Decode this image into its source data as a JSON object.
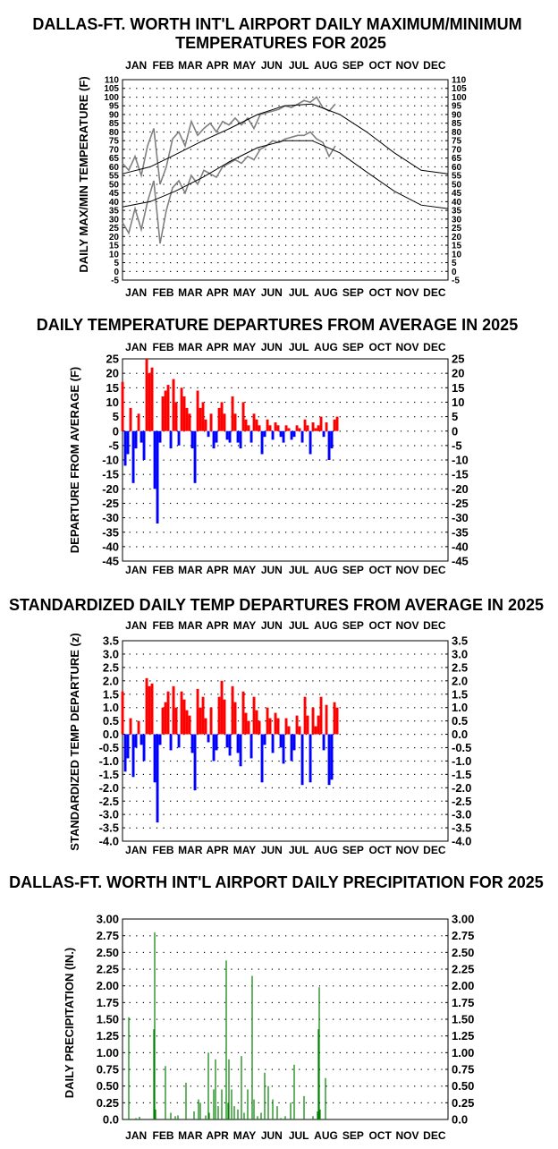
{
  "months": [
    "JAN",
    "FEB",
    "MAR",
    "APR",
    "MAY",
    "JUN",
    "JUL",
    "AUG",
    "SEP",
    "OCT",
    "NOV",
    "DEC"
  ],
  "colors": {
    "max_min": "#808080",
    "normal": "#000000",
    "above": "#ff0000",
    "below": "#0000ff",
    "precip": "#008000",
    "grid": "#000000"
  },
  "chart_data": [
    {
      "type": "line",
      "title": "DALLAS-FT. WORTH INT'L AIRPORT DAILY MAXIMUM/MINIMUM\nTEMPERATURES FOR 2025",
      "ylabel": "DAILY MAX/MIN TEMPERATURE (F)",
      "ylim": [
        -5,
        110
      ],
      "yticks": [
        "110",
        "105",
        "100",
        "95",
        "90",
        "85",
        "80",
        "75",
        "70",
        "65",
        "60",
        "55",
        "50",
        "45",
        "40",
        "35",
        "30",
        "25",
        "20",
        "15",
        "10",
        "5",
        "0",
        "-5"
      ],
      "x_units": "day of year",
      "xlim": [
        1,
        365
      ],
      "grid": true,
      "series": [
        {
          "name": "",
          "role": "daily max",
          "x": [
            1,
            8,
            15,
            22,
            29,
            36,
            43,
            50,
            57,
            64,
            71,
            78,
            85,
            92,
            99,
            106,
            113,
            120,
            127,
            134,
            141,
            148,
            155,
            162,
            169,
            176,
            183,
            190,
            197,
            204,
            211,
            218,
            225,
            232,
            239
          ],
          "values": [
            62,
            58,
            66,
            55,
            72,
            82,
            50,
            60,
            76,
            80,
            72,
            86,
            78,
            82,
            85,
            80,
            86,
            84,
            88,
            84,
            88,
            82,
            90,
            91,
            92,
            93,
            95,
            94,
            96,
            98,
            97,
            100,
            94,
            92,
            96
          ]
        },
        {
          "name": "",
          "role": "daily min",
          "x": [
            1,
            8,
            15,
            22,
            29,
            36,
            43,
            50,
            57,
            64,
            71,
            78,
            85,
            92,
            99,
            106,
            113,
            120,
            127,
            134,
            141,
            148,
            155,
            162,
            169,
            176,
            183,
            190,
            197,
            204,
            211,
            218,
            225,
            232,
            239
          ],
          "values": [
            28,
            22,
            36,
            24,
            40,
            52,
            16,
            35,
            48,
            52,
            45,
            55,
            50,
            58,
            56,
            54,
            60,
            62,
            64,
            62,
            66,
            64,
            70,
            72,
            75,
            74,
            76,
            77,
            78,
            78,
            80,
            76,
            74,
            66,
            72
          ]
        },
        {
          "name": "",
          "role": "normal max",
          "x": [
            1,
            32,
            60,
            91,
            121,
            152,
            182,
            213,
            244,
            274,
            305,
            335,
            365
          ],
          "values": [
            56,
            60,
            67,
            75,
            82,
            90,
            95,
            96,
            90,
            80,
            68,
            58,
            56
          ]
        },
        {
          "name": "",
          "role": "normal min",
          "x": [
            1,
            32,
            60,
            91,
            121,
            152,
            182,
            213,
            244,
            274,
            305,
            335,
            365
          ],
          "values": [
            37,
            40,
            46,
            54,
            63,
            71,
            75,
            75,
            68,
            57,
            46,
            38,
            36
          ]
        }
      ]
    },
    {
      "type": "bar",
      "title": "DAILY TEMPERATURE DEPARTURES FROM AVERAGE IN 2025",
      "ylabel": "DEPARTURE FROM AVERAGE (F)",
      "ylim": [
        -45,
        25
      ],
      "yticks": [
        "25",
        "20",
        "15",
        "10",
        "5",
        "0",
        "-5",
        "-10",
        "-15",
        "-20",
        "-25",
        "-30",
        "-35",
        "-40",
        "-45"
      ],
      "x_units": "day of year",
      "x": [
        1,
        4,
        7,
        10,
        13,
        16,
        19,
        22,
        25,
        28,
        31,
        34,
        37,
        40,
        43,
        46,
        49,
        52,
        55,
        58,
        61,
        64,
        67,
        70,
        73,
        76,
        79,
        82,
        85,
        88,
        91,
        94,
        97,
        100,
        103,
        106,
        109,
        112,
        115,
        118,
        121,
        124,
        127,
        130,
        133,
        136,
        139,
        142,
        145,
        148,
        151,
        154,
        157,
        160,
        163,
        166,
        169,
        172,
        175,
        178,
        181,
        184,
        187,
        190,
        193,
        196,
        199,
        202,
        205,
        208,
        211,
        214,
        217,
        220,
        223,
        226,
        229,
        232,
        235,
        238,
        241
      ],
      "values": [
        17,
        -12,
        -8,
        8,
        -18,
        -6,
        6,
        -4,
        -10,
        25,
        20,
        22,
        -20,
        -32,
        -4,
        12,
        14,
        16,
        -6,
        18,
        10,
        -5,
        15,
        12,
        8,
        6,
        -6,
        -18,
        14,
        8,
        10,
        4,
        -2,
        6,
        -6,
        -4,
        8,
        10,
        6,
        -3,
        -4,
        12,
        6,
        -4,
        -6,
        10,
        4,
        2,
        -4,
        6,
        4,
        2,
        -8,
        -2,
        4,
        2,
        -3,
        3,
        2,
        -2,
        -4,
        2,
        1,
        -3,
        -2,
        2,
        1,
        -4,
        4,
        2,
        -8,
        3,
        1,
        2,
        5,
        -2,
        3,
        -10,
        -6,
        4,
        5
      ],
      "grid": true
    },
    {
      "type": "bar",
      "title": "STANDARDIZED DAILY TEMP DEPARTURES FROM AVERAGE IN 2025",
      "ylabel": "STANDARDIZED TEMP DEPARTURE (z)",
      "ylim": [
        -4.0,
        3.5
      ],
      "yticks": [
        "3.5",
        "3.0",
        "2.5",
        "2.0",
        "1.5",
        "1.0",
        "0.5",
        "0.0",
        "-0.5",
        "-1.0",
        "-1.5",
        "-2.0",
        "-2.5",
        "-3.0",
        "-3.5",
        "-4.0"
      ],
      "x_units": "day of year",
      "x": [
        1,
        4,
        7,
        10,
        13,
        16,
        19,
        22,
        25,
        28,
        31,
        34,
        37,
        40,
        43,
        46,
        49,
        52,
        55,
        58,
        61,
        64,
        67,
        70,
        73,
        76,
        79,
        82,
        85,
        88,
        91,
        94,
        97,
        100,
        103,
        106,
        109,
        112,
        115,
        118,
        121,
        124,
        127,
        130,
        133,
        136,
        139,
        142,
        145,
        148,
        151,
        154,
        157,
        160,
        163,
        166,
        169,
        172,
        175,
        178,
        181,
        184,
        187,
        190,
        193,
        196,
        199,
        202,
        205,
        208,
        211,
        214,
        217,
        220,
        223,
        226,
        229,
        232,
        235,
        238,
        241
      ],
      "values": [
        1.6,
        -1.4,
        -0.9,
        0.6,
        -1.6,
        -0.5,
        0.5,
        -0.4,
        -1.0,
        2.1,
        1.8,
        1.9,
        -1.8,
        -3.3,
        -0.4,
        1.0,
        1.2,
        1.6,
        -0.6,
        1.8,
        1.0,
        -0.5,
        1.6,
        1.3,
        0.9,
        0.7,
        -0.7,
        -2.1,
        1.7,
        1.0,
        1.4,
        0.6,
        -0.3,
        1.0,
        -1.0,
        -0.6,
        1.4,
        2.0,
        1.3,
        -0.5,
        -0.8,
        1.8,
        1.2,
        -0.7,
        -1.2,
        1.6,
        0.8,
        0.5,
        -0.9,
        1.4,
        0.9,
        0.5,
        -1.8,
        -0.4,
        1.0,
        0.6,
        -0.7,
        0.8,
        0.6,
        -0.5,
        -1.1,
        0.6,
        0.3,
        -1.0,
        -0.6,
        0.7,
        0.3,
        -1.9,
        1.4,
        0.7,
        -1.8,
        1.0,
        0.3,
        0.7,
        1.4,
        -0.6,
        1.1,
        -1.9,
        -1.7,
        1.2,
        1.0
      ],
      "grid": true
    },
    {
      "type": "bar",
      "title": "DALLAS-FT. WORTH INT'L AIRPORT DAILY PRECIPITATION FOR 2025",
      "ylabel": "DAILY PRECIPITATION (IN.)",
      "ylim": [
        0.0,
        3.0
      ],
      "yticks": [
        "3.00",
        "2.75",
        "2.50",
        "2.25",
        "2.00",
        "1.75",
        "1.50",
        "1.25",
        "1.00",
        "0.75",
        "0.50",
        "0.25",
        "0.0"
      ],
      "x_units": "day of year",
      "x": [
        8,
        16,
        20,
        36,
        37,
        38,
        49,
        55,
        60,
        63,
        72,
        81,
        86,
        88,
        94,
        97,
        98,
        103,
        105,
        108,
        112,
        117,
        119,
        120,
        123,
        126,
        130,
        134,
        137,
        141,
        146,
        148,
        152,
        156,
        160,
        164,
        169,
        174,
        178,
        183,
        189,
        193,
        204,
        214,
        219,
        220,
        221,
        222,
        228
      ],
      "values": [
        1.53,
        0.02,
        0.04,
        1.35,
        2.8,
        0.15,
        0.8,
        0.1,
        0.05,
        0.06,
        0.55,
        0.12,
        0.3,
        0.25,
        0.06,
        1.0,
        0.1,
        0.45,
        0.9,
        0.2,
        0.45,
        2.38,
        0.25,
        0.9,
        0.45,
        0.2,
        0.15,
        0.95,
        0.1,
        0.45,
        2.15,
        0.3,
        0.05,
        0.1,
        0.7,
        0.5,
        0.3,
        0.2,
        0.02,
        0.05,
        0.25,
        0.82,
        0.35,
        0.05,
        0.12,
        1.35,
        1.98,
        0.15,
        0.62
      ],
      "grid": true
    }
  ]
}
